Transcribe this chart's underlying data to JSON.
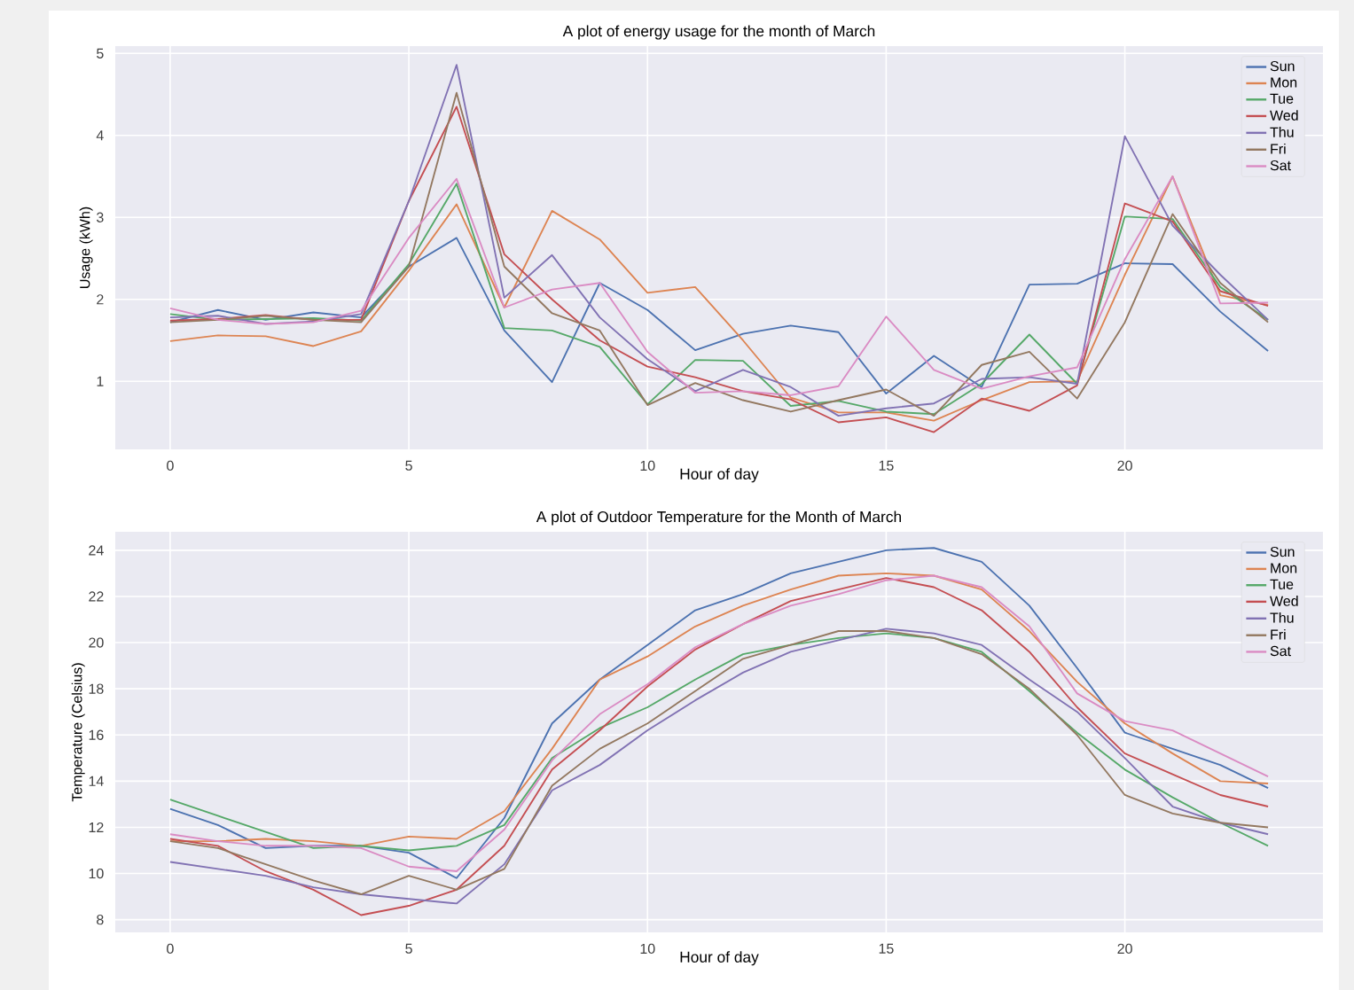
{
  "chart_data": [
    {
      "type": "line",
      "title": "A plot of energy usage for the month of March",
      "xlabel": "Hour of day",
      "ylabel": "Usage (kWh)",
      "x": [
        0,
        1,
        2,
        3,
        4,
        5,
        6,
        7,
        8,
        9,
        10,
        11,
        12,
        13,
        14,
        15,
        16,
        17,
        18,
        19,
        20,
        21,
        22,
        23
      ],
      "xlim": [
        -1.15,
        24.15
      ],
      "ylim": [
        0.17,
        5.09
      ],
      "xticks": [
        0,
        5,
        10,
        15,
        20
      ],
      "yticks": [
        1,
        2,
        3,
        4,
        5
      ],
      "grid": true,
      "legend": "top right",
      "series": [
        {
          "name": "Sun",
          "color": "#4c72b0",
          "values": [
            1.72,
            1.87,
            1.75,
            1.84,
            1.78,
            2.4,
            2.75,
            1.62,
            0.99,
            2.2,
            1.87,
            1.38,
            1.58,
            1.68,
            1.6,
            0.85,
            1.31,
            0.93,
            2.18,
            2.19,
            2.44,
            2.43,
            1.85,
            1.37
          ]
        },
        {
          "name": "Mon",
          "color": "#dd8452",
          "values": [
            1.49,
            1.56,
            1.55,
            1.43,
            1.61,
            2.35,
            3.16,
            1.9,
            3.08,
            2.73,
            2.08,
            2.15,
            1.5,
            0.8,
            0.62,
            0.62,
            0.52,
            0.77,
            0.99,
            1.0,
            2.3,
            3.5,
            2.05,
            1.93
          ]
        },
        {
          "name": "Tue",
          "color": "#55a868",
          "values": [
            1.82,
            1.75,
            1.76,
            1.77,
            1.74,
            2.43,
            3.41,
            1.65,
            1.62,
            1.42,
            0.72,
            1.26,
            1.25,
            0.7,
            0.76,
            0.63,
            0.6,
            0.97,
            1.57,
            0.97,
            3.01,
            2.98,
            2.15,
            1.75
          ]
        },
        {
          "name": "Wed",
          "color": "#c44e52",
          "values": [
            1.74,
            1.76,
            1.81,
            1.75,
            1.75,
            3.2,
            4.35,
            2.55,
            2.0,
            1.5,
            1.18,
            1.05,
            0.88,
            0.78,
            0.5,
            0.56,
            0.38,
            0.79,
            0.64,
            0.95,
            3.17,
            2.95,
            2.1,
            1.92
          ]
        },
        {
          "name": "Thu",
          "color": "#8172b3",
          "values": [
            1.78,
            1.8,
            1.7,
            1.73,
            1.82,
            3.2,
            4.86,
            2.02,
            2.54,
            1.78,
            1.27,
            0.88,
            1.14,
            0.93,
            0.58,
            0.67,
            0.73,
            1.03,
            1.05,
            0.97,
            3.99,
            2.9,
            2.3,
            1.75
          ]
        },
        {
          "name": "Fri",
          "color": "#937860",
          "values": [
            1.72,
            1.75,
            1.8,
            1.75,
            1.72,
            2.4,
            4.52,
            2.4,
            1.83,
            1.62,
            0.71,
            0.98,
            0.77,
            0.63,
            0.77,
            0.9,
            0.58,
            1.2,
            1.36,
            0.79,
            1.72,
            3.04,
            2.2,
            1.72
          ]
        },
        {
          "name": "Sat",
          "color": "#da8bc3",
          "values": [
            1.89,
            1.75,
            1.7,
            1.72,
            1.86,
            2.75,
            3.47,
            1.9,
            2.12,
            2.2,
            1.36,
            0.86,
            0.88,
            0.83,
            0.94,
            1.79,
            1.14,
            0.91,
            1.06,
            1.17,
            2.49,
            3.5,
            1.95,
            1.96
          ]
        }
      ]
    },
    {
      "type": "line",
      "title": "A plot of Outdoor Temperature for the Month of March",
      "xlabel": "Hour of day",
      "ylabel": "Temperature (Celsius)",
      "x": [
        0,
        1,
        2,
        3,
        4,
        5,
        6,
        7,
        8,
        9,
        10,
        11,
        12,
        13,
        14,
        15,
        16,
        17,
        18,
        19,
        20,
        21,
        22,
        23
      ],
      "xlim": [
        -1.15,
        24.15
      ],
      "ylim": [
        7.45,
        24.8
      ],
      "xticks": [
        0,
        5,
        10,
        15,
        20
      ],
      "yticks": [
        8,
        10,
        12,
        14,
        16,
        18,
        20,
        22,
        24
      ],
      "grid": true,
      "legend": "top right",
      "series": [
        {
          "name": "Sun",
          "color": "#4c72b0",
          "values": [
            12.8,
            12.1,
            11.1,
            11.2,
            11.2,
            10.9,
            9.8,
            12.4,
            16.5,
            18.4,
            19.9,
            21.4,
            22.1,
            23.0,
            23.5,
            24.0,
            24.1,
            23.5,
            21.6,
            18.9,
            16.1,
            15.4,
            14.7,
            13.7
          ]
        },
        {
          "name": "Mon",
          "color": "#dd8452",
          "values": [
            11.4,
            11.4,
            11.5,
            11.4,
            11.2,
            11.6,
            11.5,
            12.7,
            15.4,
            18.4,
            19.4,
            20.7,
            21.6,
            22.3,
            22.9,
            23.0,
            22.9,
            22.3,
            20.5,
            18.3,
            16.5,
            15.2,
            14.0,
            13.9
          ]
        },
        {
          "name": "Tue",
          "color": "#55a868",
          "values": [
            13.2,
            12.5,
            11.8,
            11.1,
            11.2,
            11.0,
            11.2,
            12.1,
            15.0,
            16.3,
            17.2,
            18.4,
            19.5,
            19.9,
            20.2,
            20.4,
            20.2,
            19.6,
            17.9,
            16.1,
            14.5,
            13.3,
            12.2,
            11.2
          ]
        },
        {
          "name": "Wed",
          "color": "#c44e52",
          "values": [
            11.5,
            11.2,
            10.1,
            9.3,
            8.2,
            8.6,
            9.3,
            11.2,
            14.5,
            16.2,
            18.1,
            19.7,
            20.8,
            21.8,
            22.3,
            22.8,
            22.4,
            21.4,
            19.6,
            17.2,
            15.2,
            14.3,
            13.4,
            12.9
          ]
        },
        {
          "name": "Thu",
          "color": "#8172b3",
          "values": [
            10.5,
            10.2,
            9.9,
            9.4,
            9.1,
            8.9,
            8.7,
            10.4,
            13.6,
            14.7,
            16.2,
            17.5,
            18.7,
            19.6,
            20.1,
            20.6,
            20.4,
            19.9,
            18.4,
            17.0,
            15.0,
            12.9,
            12.2,
            11.7
          ]
        },
        {
          "name": "Fri",
          "color": "#937860",
          "values": [
            11.4,
            11.1,
            10.4,
            9.7,
            9.1,
            9.9,
            9.3,
            10.2,
            13.8,
            15.4,
            16.5,
            17.9,
            19.3,
            19.9,
            20.5,
            20.5,
            20.2,
            19.5,
            18.0,
            16.0,
            13.4,
            12.6,
            12.2,
            12.0
          ]
        },
        {
          "name": "Sat",
          "color": "#da8bc3",
          "values": [
            11.7,
            11.4,
            11.2,
            11.2,
            11.1,
            10.3,
            10.1,
            11.9,
            14.9,
            16.9,
            18.2,
            19.8,
            20.8,
            21.6,
            22.1,
            22.7,
            22.9,
            22.4,
            20.7,
            17.8,
            16.6,
            16.2,
            15.2,
            14.2
          ]
        }
      ]
    }
  ]
}
